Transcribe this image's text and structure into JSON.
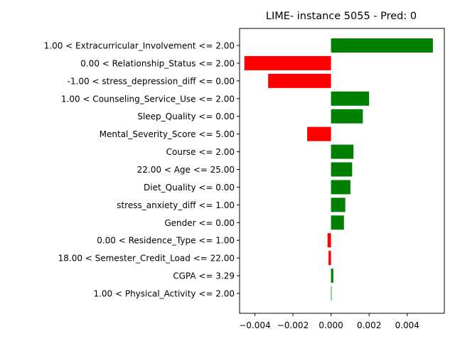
{
  "chart_data": {
    "type": "bar",
    "orientation": "horizontal",
    "title": "LIME- instance 5055 - Pred: 0",
    "xlabel": "",
    "ylabel": "",
    "xlim": [
      -0.0048,
      0.00595
    ],
    "xticks": [
      -0.004,
      -0.002,
      0.0,
      0.002,
      0.004
    ],
    "xtick_labels": [
      "−0.004",
      "−0.002",
      "0.000",
      "0.002",
      "0.004"
    ],
    "grid": false,
    "legend": "none",
    "colors": {
      "positive": "#008000",
      "negative": "#ff0000"
    },
    "categories": [
      "1.00 < Extracurricular_Involvement <= 2.00",
      "0.00 < Relationship_Status <= 2.00",
      "-1.00 < stress_depression_diff <= 0.00",
      "1.00 < Counseling_Service_Use <= 2.00",
      "Sleep_Quality <= 0.00",
      "Mental_Severity_Score <= 5.00",
      "Course <= 2.00",
      "22.00 < Age <= 25.00",
      "Diet_Quality <= 0.00",
      "stress_anxiety_diff <= 1.00",
      "Gender <= 0.00",
      "0.00 < Residence_Type <= 1.00",
      "18.00 < Semester_Credit_Load <= 22.00",
      "CGPA <= 3.29",
      "1.00 < Physical_Activity <= 2.00"
    ],
    "values": [
      0.00535,
      -0.00455,
      -0.0033,
      0.002,
      0.00167,
      -0.00125,
      0.00118,
      0.00111,
      0.00102,
      0.00075,
      0.00068,
      -0.00018,
      -0.00013,
      0.00012,
      3e-05
    ]
  }
}
